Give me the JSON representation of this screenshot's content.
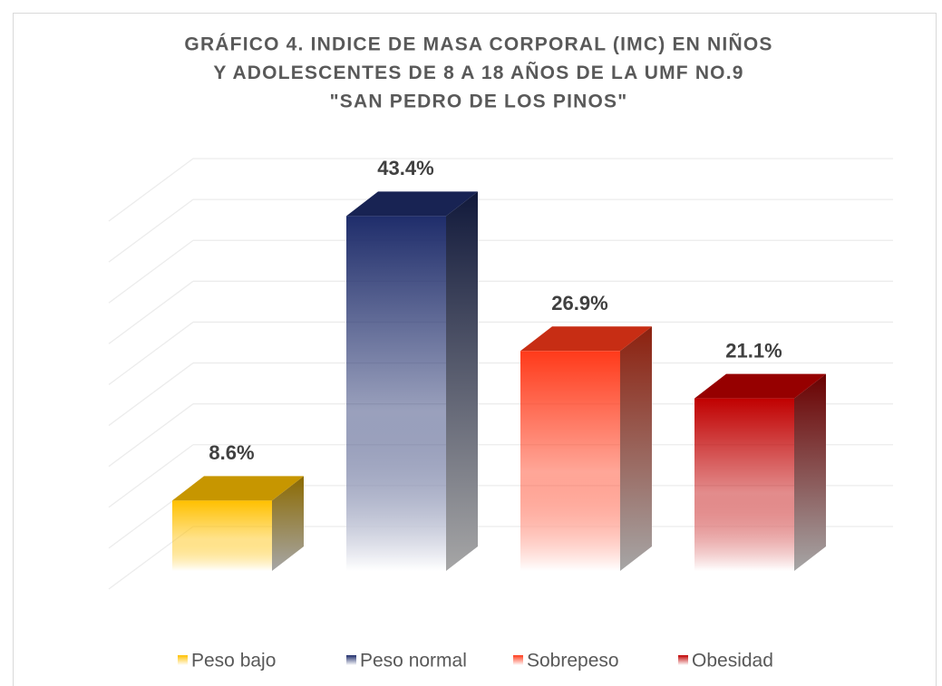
{
  "chart_data": {
    "type": "bar3d",
    "title": [
      "GRÁFICO 4. INDICE DE MASA CORPORAL (IMC) EN NIÑOS",
      "Y ADOLESCENTES DE 8 A 18 AÑOS DE LA UMF NO.9",
      "\"SAN PEDRO DE LOS PINOS\""
    ],
    "series": [
      {
        "name": "Peso bajo",
        "color": "#ffc000",
        "values": [
          8.6
        ],
        "value_labels": [
          "8.6%"
        ]
      },
      {
        "name": "Peso normal",
        "color": "#1f2d6b",
        "values": [
          43.4
        ],
        "value_labels": [
          "43.4%"
        ]
      },
      {
        "name": "Sobrepeso",
        "color": "#ff3a1a",
        "values": [
          26.9
        ],
        "value_labels": [
          "26.9%"
        ]
      },
      {
        "name": "Obesidad",
        "color": "#c00000",
        "values": [
          21.1
        ],
        "value_labels": [
          "21.1%"
        ]
      }
    ],
    "ylim": [
      0,
      45
    ],
    "yticks": [
      0,
      5,
      10,
      15,
      20,
      25,
      30,
      35,
      40,
      45
    ],
    "grid": true,
    "legend": "bottom"
  }
}
